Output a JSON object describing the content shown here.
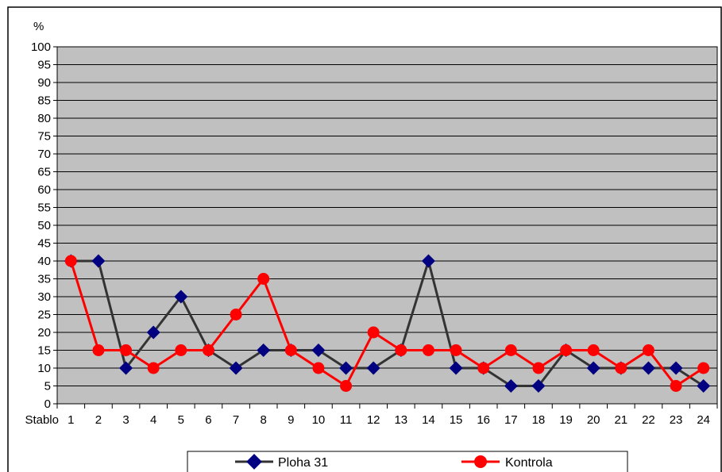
{
  "chart_data": {
    "type": "line",
    "ylabel": "%",
    "xlabel": "Stablo",
    "ylim": [
      0,
      100
    ],
    "ytick_step": 5,
    "categories": [
      "1",
      "2",
      "3",
      "4",
      "5",
      "6",
      "7",
      "8",
      "9",
      "10",
      "11",
      "12",
      "13",
      "14",
      "15",
      "16",
      "17",
      "18",
      "19",
      "20",
      "21",
      "22",
      "23",
      "24"
    ],
    "series": [
      {
        "name": "Ploha 31",
        "color": "#000080",
        "line_color": "#333333",
        "marker": "diamond",
        "values": [
          40,
          40,
          10,
          20,
          30,
          15,
          10,
          15,
          15,
          15,
          10,
          10,
          15,
          40,
          10,
          10,
          5,
          5,
          15,
          10,
          10,
          10,
          10,
          5
        ]
      },
      {
        "name": "Kontrola",
        "color": "#ff0000",
        "line_color": "#ff0000",
        "marker": "circle",
        "values": [
          40,
          15,
          15,
          10,
          15,
          15,
          25,
          35,
          15,
          10,
          5,
          20,
          15,
          15,
          15,
          10,
          15,
          10,
          15,
          15,
          10,
          15,
          5,
          10
        ]
      }
    ],
    "grid": true,
    "plot_background": "#c0c0c0",
    "legend_position": "bottom"
  }
}
